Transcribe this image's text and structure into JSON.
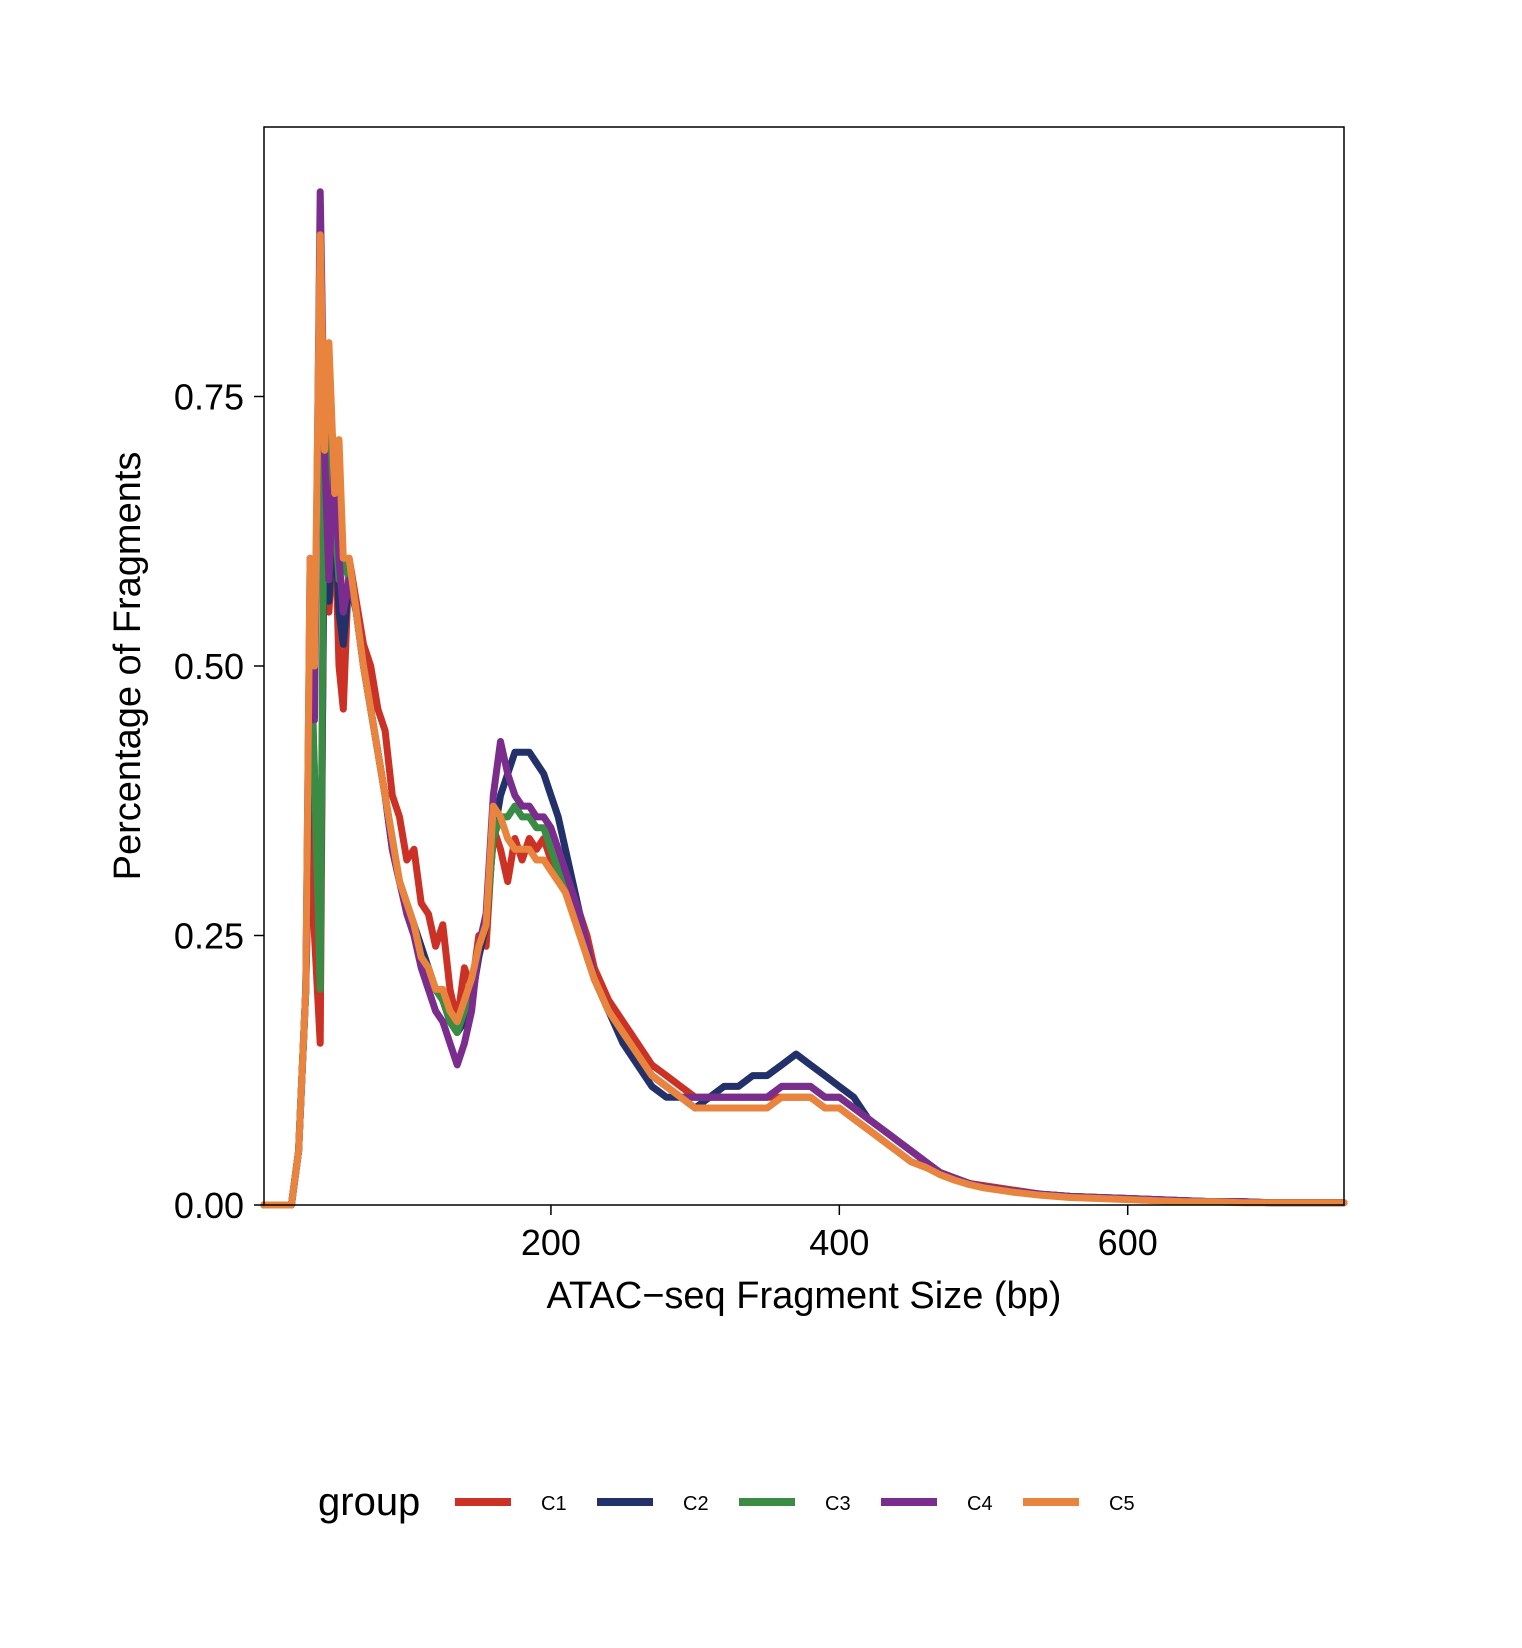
{
  "chart_data": {
    "type": "line",
    "title": "",
    "xlabel": "ATAC−seq Fragment Size (bp)",
    "ylabel": "Percentage of Fragments",
    "xlim": [
      1,
      750
    ],
    "ylim": [
      0,
      1.0
    ],
    "x_ticks": [
      200,
      400,
      600
    ],
    "x_tick_labels": [
      "200",
      "400",
      "600"
    ],
    "y_ticks": [
      0,
      0.25,
      0.5,
      0.75
    ],
    "y_tick_labels": [
      "0.00",
      "0.25",
      "0.50",
      "0.75"
    ],
    "grid": false,
    "legend": {
      "title": "group",
      "position": "bottom"
    },
    "x": [
      1,
      10,
      20,
      25,
      30,
      33,
      36,
      40,
      43,
      46,
      50,
      53,
      56,
      60,
      65,
      70,
      75,
      80,
      85,
      90,
      95,
      100,
      105,
      110,
      115,
      120,
      125,
      130,
      135,
      140,
      145,
      150,
      155,
      160,
      165,
      170,
      175,
      180,
      185,
      190,
      195,
      200,
      205,
      210,
      215,
      220,
      225,
      230,
      240,
      250,
      260,
      270,
      280,
      290,
      300,
      310,
      320,
      330,
      340,
      350,
      360,
      370,
      380,
      390,
      400,
      410,
      420,
      430,
      440,
      450,
      460,
      470,
      480,
      490,
      500,
      520,
      540,
      560,
      580,
      600,
      620,
      640,
      660,
      680,
      700,
      720,
      750
    ],
    "series": [
      {
        "name": "C1",
        "color": "#CB3124",
        "values": [
          0,
          0,
          0,
          0.05,
          0.2,
          0.38,
          0.25,
          0.15,
          0.72,
          0.55,
          0.64,
          0.5,
          0.46,
          0.6,
          0.56,
          0.52,
          0.5,
          0.46,
          0.44,
          0.38,
          0.36,
          0.32,
          0.33,
          0.28,
          0.27,
          0.24,
          0.26,
          0.2,
          0.17,
          0.22,
          0.2,
          0.25,
          0.24,
          0.35,
          0.33,
          0.3,
          0.34,
          0.32,
          0.34,
          0.33,
          0.34,
          0.32,
          0.31,
          0.3,
          0.28,
          0.27,
          0.25,
          0.22,
          0.19,
          0.17,
          0.15,
          0.13,
          0.12,
          0.11,
          0.1,
          0.1,
          0.1,
          0.1,
          0.1,
          0.1,
          0.1,
          0.1,
          0.1,
          0.09,
          0.09,
          0.08,
          0.07,
          0.06,
          0.05,
          0.04,
          0.035,
          0.03,
          0.025,
          0.02,
          0.018,
          0.014,
          0.01,
          0.008,
          0.007,
          0.006,
          0.005,
          0.004,
          0.003,
          0.003,
          0.002,
          0.002,
          0.002
        ]
      },
      {
        "name": "C2",
        "color": "#23316B",
        "values": [
          0,
          0,
          0,
          0.05,
          0.2,
          0.5,
          0.4,
          0.22,
          0.66,
          0.56,
          0.65,
          0.55,
          0.52,
          0.58,
          0.55,
          0.5,
          0.46,
          0.42,
          0.38,
          0.33,
          0.3,
          0.28,
          0.26,
          0.24,
          0.22,
          0.2,
          0.19,
          0.17,
          0.16,
          0.17,
          0.19,
          0.23,
          0.26,
          0.34,
          0.38,
          0.4,
          0.42,
          0.42,
          0.42,
          0.41,
          0.4,
          0.38,
          0.36,
          0.33,
          0.3,
          0.27,
          0.24,
          0.21,
          0.18,
          0.15,
          0.13,
          0.11,
          0.1,
          0.1,
          0.09,
          0.1,
          0.11,
          0.11,
          0.12,
          0.12,
          0.13,
          0.14,
          0.13,
          0.12,
          0.11,
          0.1,
          0.08,
          0.07,
          0.06,
          0.05,
          0.04,
          0.03,
          0.025,
          0.02,
          0.017,
          0.013,
          0.01,
          0.008,
          0.007,
          0.006,
          0.005,
          0.004,
          0.003,
          0.003,
          0.002,
          0.002,
          0.002
        ]
      },
      {
        "name": "C3",
        "color": "#3A8B43",
        "values": [
          0,
          0,
          0,
          0.05,
          0.2,
          0.55,
          0.4,
          0.2,
          0.76,
          0.62,
          0.64,
          0.58,
          0.6,
          0.58,
          0.55,
          0.5,
          0.46,
          0.42,
          0.38,
          0.34,
          0.3,
          0.28,
          0.26,
          0.23,
          0.22,
          0.2,
          0.19,
          0.17,
          0.16,
          0.18,
          0.2,
          0.24,
          0.26,
          0.34,
          0.36,
          0.36,
          0.37,
          0.36,
          0.36,
          0.35,
          0.35,
          0.33,
          0.31,
          0.3,
          0.28,
          0.26,
          0.23,
          0.21,
          0.18,
          0.16,
          0.14,
          0.12,
          0.11,
          0.1,
          0.1,
          0.1,
          0.1,
          0.1,
          0.1,
          0.1,
          0.11,
          0.11,
          0.11,
          0.1,
          0.1,
          0.09,
          0.08,
          0.07,
          0.06,
          0.05,
          0.04,
          0.03,
          0.025,
          0.02,
          0.017,
          0.013,
          0.01,
          0.008,
          0.007,
          0.006,
          0.005,
          0.004,
          0.003,
          0.003,
          0.002,
          0.002,
          0.002
        ]
      },
      {
        "name": "C4",
        "color": "#7B2D8E",
        "values": [
          0,
          0,
          0,
          0.05,
          0.2,
          0.6,
          0.45,
          0.94,
          0.7,
          0.58,
          0.7,
          0.6,
          0.55,
          0.58,
          0.55,
          0.5,
          0.46,
          0.42,
          0.38,
          0.33,
          0.3,
          0.27,
          0.25,
          0.22,
          0.2,
          0.18,
          0.17,
          0.15,
          0.13,
          0.15,
          0.18,
          0.24,
          0.27,
          0.38,
          0.43,
          0.4,
          0.38,
          0.37,
          0.37,
          0.36,
          0.36,
          0.35,
          0.33,
          0.31,
          0.29,
          0.27,
          0.24,
          0.21,
          0.18,
          0.16,
          0.14,
          0.12,
          0.11,
          0.1,
          0.1,
          0.1,
          0.1,
          0.1,
          0.1,
          0.1,
          0.11,
          0.11,
          0.11,
          0.1,
          0.1,
          0.09,
          0.08,
          0.07,
          0.06,
          0.05,
          0.04,
          0.03,
          0.025,
          0.02,
          0.017,
          0.013,
          0.01,
          0.008,
          0.007,
          0.006,
          0.005,
          0.004,
          0.003,
          0.003,
          0.002,
          0.002,
          0.002
        ]
      },
      {
        "name": "C5",
        "color": "#E8843E",
        "values": [
          0,
          0,
          0,
          0.05,
          0.2,
          0.6,
          0.5,
          0.9,
          0.7,
          0.8,
          0.66,
          0.71,
          0.6,
          0.6,
          0.55,
          0.5,
          0.46,
          0.42,
          0.38,
          0.34,
          0.3,
          0.28,
          0.26,
          0.23,
          0.22,
          0.2,
          0.2,
          0.18,
          0.17,
          0.19,
          0.21,
          0.24,
          0.26,
          0.37,
          0.36,
          0.34,
          0.33,
          0.33,
          0.33,
          0.32,
          0.32,
          0.31,
          0.3,
          0.29,
          0.27,
          0.25,
          0.23,
          0.21,
          0.18,
          0.16,
          0.14,
          0.12,
          0.11,
          0.1,
          0.09,
          0.09,
          0.09,
          0.09,
          0.09,
          0.09,
          0.1,
          0.1,
          0.1,
          0.09,
          0.09,
          0.08,
          0.07,
          0.06,
          0.05,
          0.04,
          0.035,
          0.028,
          0.023,
          0.019,
          0.016,
          0.012,
          0.009,
          0.007,
          0.006,
          0.005,
          0.004,
          0.003,
          0.003,
          0.002,
          0.002,
          0.002,
          0.002
        ]
      }
    ]
  }
}
